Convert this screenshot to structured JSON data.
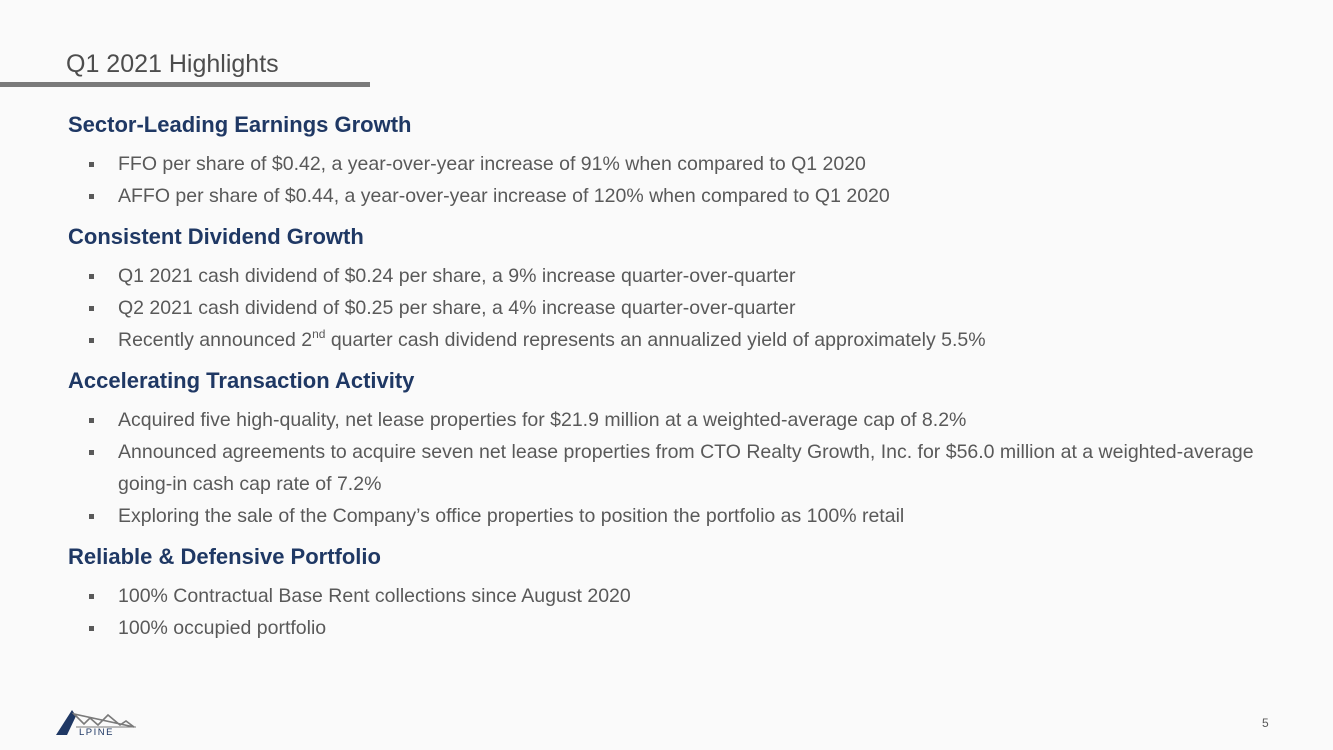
{
  "slide": {
    "title": "Q1 2021 Highlights",
    "page_number": "5"
  },
  "sections": [
    {
      "heading": "Sector-Leading Earnings Growth",
      "bullets": [
        {
          "text": "FFO per share of $0.42, a year-over-year increase of 91% when compared to Q1 2020"
        },
        {
          "text": "AFFO per share of $0.44, a year-over-year increase of 120% when compared to Q1 2020"
        }
      ]
    },
    {
      "heading": "Consistent Dividend Growth",
      "bullets": [
        {
          "text": "Q1 2021 cash dividend of $0.24 per share, a 9% increase quarter-over-quarter"
        },
        {
          "text": "Q2 2021 cash dividend of $0.25 per share, a 4% increase quarter-over-quarter"
        },
        {
          "pre": "Recently announced 2",
          "sup": "nd",
          "post": " quarter cash dividend represents an annualized yield of approximately 5.5%"
        }
      ]
    },
    {
      "heading": "Accelerating Transaction Activity",
      "bullets": [
        {
          "text": "Acquired five high-quality, net lease properties for $21.9 million at a weighted-average cap of 8.2%"
        },
        {
          "text": "Announced agreements to acquire seven net lease properties from CTO Realty Growth, Inc. for $56.0 million at a weighted-average going-in cash cap rate of 7.2%"
        },
        {
          "text": "Exploring the sale of the Company’s office properties to position the portfolio as 100% retail"
        }
      ]
    },
    {
      "heading": "Reliable & Defensive Portfolio",
      "bullets": [
        {
          "text": "100% Contractual Base Rent collections since August 2020"
        },
        {
          "text": "100% occupied portfolio"
        }
      ]
    }
  ],
  "logo": {
    "text": "LPINE",
    "icon": "alpine-mountain-logo-icon",
    "color": "#1f3864"
  }
}
